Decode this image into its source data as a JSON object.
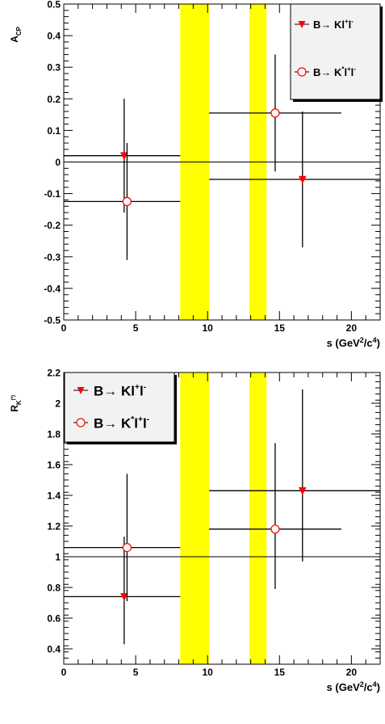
{
  "chart_data": [
    {
      "type": "scatter",
      "xlabel_main": "s (GeV",
      "xlabel_sup1": "2",
      "xlabel_mid": "/c",
      "xlabel_sup2": "4",
      "xlabel_end": ")",
      "ylabel_main": "A",
      "ylabel_sub": "CP",
      "xlim": [
        0,
        22
      ],
      "ylim": [
        -0.5,
        0.5
      ],
      "xticks": [
        0,
        5,
        10,
        15,
        20
      ],
      "xtick_labels": [
        "0",
        "5",
        "10",
        "15",
        "20"
      ],
      "yticks": [
        -0.5,
        -0.4,
        -0.3,
        -0.2,
        -0.1,
        0,
        0.1,
        0.2,
        0.3,
        0.4,
        0.5
      ],
      "ytick_labels": [
        "-0.5",
        "-0.4",
        "-0.3",
        "-0.2",
        "-0.1",
        "0",
        "0.1",
        "0.2",
        "0.3",
        "0.4",
        "0.5"
      ],
      "reference_line": 0,
      "vetoed_bands": [
        [
          8.1,
          10.1
        ],
        [
          12.9,
          14.1
        ]
      ],
      "band_color": "#ffff00",
      "grid": false,
      "legend_position": "top-right",
      "series": [
        {
          "name": "B→ Kl⁺l⁻",
          "legend": {
            "main": "B→ Kl",
            "sup": "+",
            "tail": "l",
            "sup2": "-"
          },
          "marker": "filled-down-triangle",
          "color": "#ff0000",
          "points": [
            {
              "x": 4.2,
              "y": 0.02,
              "xlo": 0.0,
              "xhi": 8.1,
              "ylo": -0.16,
              "yhi": 0.2
            },
            {
              "x": 16.6,
              "y": -0.055,
              "xlo": 10.1,
              "xhi": 22.0,
              "ylo": -0.27,
              "yhi": 0.16
            }
          ]
        },
        {
          "name": "B→ K*l⁺l⁻",
          "legend": {
            "main": "B→ K",
            "sup": "*",
            "tail": "l",
            "sup2": "+",
            "tail2": "l",
            "sup3": "-"
          },
          "marker": "open-circle",
          "color": "#ff0000",
          "points": [
            {
              "x": 4.4,
              "y": -0.125,
              "xlo": 0.0,
              "xhi": 8.1,
              "ylo": -0.31,
              "yhi": 0.06
            },
            {
              "x": 14.7,
              "y": 0.155,
              "xlo": 10.1,
              "xhi": 19.3,
              "ylo": -0.03,
              "yhi": 0.34
            }
          ]
        }
      ]
    },
    {
      "type": "scatter",
      "xlabel_main": "s (GeV",
      "xlabel_sup1": "2",
      "xlabel_mid": "/c",
      "xlabel_sup2": "4",
      "xlabel_end": ")",
      "ylabel_main": "R",
      "ylabel_sub": "K",
      "ylabel_subsup": "(*)",
      "xlim": [
        0,
        22
      ],
      "ylim": [
        0.3,
        2.2
      ],
      "xticks": [
        0,
        5,
        10,
        15,
        20
      ],
      "xtick_labels": [
        "0",
        "5",
        "10",
        "15",
        "20"
      ],
      "yticks": [
        0.4,
        0.6,
        0.8,
        1.0,
        1.2,
        1.4,
        1.6,
        1.8,
        2.0,
        2.2
      ],
      "ytick_labels": [
        "0.4",
        "0.6",
        "0.8",
        "1",
        "1.2",
        "1.4",
        "1.6",
        "1.8",
        "2",
        "2.2"
      ],
      "reference_line": 1,
      "vetoed_bands": [
        [
          8.1,
          10.1
        ],
        [
          12.9,
          14.1
        ]
      ],
      "band_color": "#ffff00",
      "grid": false,
      "legend_position": "top-left",
      "series": [
        {
          "name": "B→ Kl⁺l⁻",
          "legend": {
            "main": "B→ Kl",
            "sup": "+",
            "tail": "l",
            "sup2": "-"
          },
          "marker": "filled-down-triangle",
          "color": "#ff0000",
          "points": [
            {
              "x": 4.2,
              "y": 0.74,
              "xlo": 0.0,
              "xhi": 8.1,
              "ylo": 0.43,
              "yhi": 1.13
            },
            {
              "x": 16.6,
              "y": 1.43,
              "xlo": 10.1,
              "xhi": 22.0,
              "ylo": 0.97,
              "yhi": 2.09
            }
          ]
        },
        {
          "name": "B→ K*l⁺l⁻",
          "legend": {
            "main": "B→ K",
            "sup": "*",
            "tail": "l",
            "sup2": "+",
            "tail2": "l",
            "sup3": "-"
          },
          "marker": "open-circle",
          "color": "#ff0000",
          "points": [
            {
              "x": 4.4,
              "y": 1.06,
              "xlo": 0.0,
              "xhi": 8.1,
              "ylo": 0.71,
              "yhi": 1.54
            },
            {
              "x": 14.7,
              "y": 1.18,
              "xlo": 10.1,
              "xhi": 19.3,
              "ylo": 0.79,
              "yhi": 1.74
            }
          ]
        }
      ]
    }
  ]
}
